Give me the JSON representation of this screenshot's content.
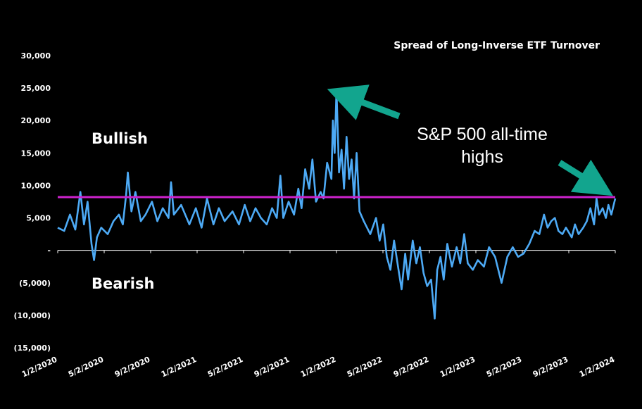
{
  "chart_data": {
    "type": "line",
    "title": "Spread of Long-Inverse ETF Turnover",
    "xlabel": "",
    "ylabel": "",
    "ylim": [
      -15000,
      30000
    ],
    "y_tick_labels": [
      "30,000",
      "25,000",
      "20,000",
      "15,000",
      "10,000",
      "5,000",
      "-",
      "(5,000)",
      "(10,000)",
      "(15,000)"
    ],
    "x_tick_labels": [
      "1/2/2020",
      "5/2/2020",
      "9/2/2020",
      "1/2/2021",
      "5/2/2021",
      "9/2/2021",
      "1/2/2022",
      "5/2/2022",
      "9/2/2022",
      "1/2/2023",
      "5/2/2023",
      "9/2/2023",
      "1/2/2024"
    ],
    "grid": false,
    "series": [
      {
        "color": "#4daaf5",
        "points": [
          [
            "2020-01-02",
            3500
          ],
          [
            "2020-01-20",
            3000
          ],
          [
            "2020-02-05",
            5500
          ],
          [
            "2020-02-20",
            3200
          ],
          [
            "2020-03-05",
            9000
          ],
          [
            "2020-03-15",
            4000
          ],
          [
            "2020-03-25",
            7500
          ],
          [
            "2020-04-05",
            1000
          ],
          [
            "2020-04-12",
            -1500
          ],
          [
            "2020-04-20",
            2000
          ],
          [
            "2020-05-02",
            3500
          ],
          [
            "2020-05-20",
            2500
          ],
          [
            "2020-06-05",
            4500
          ],
          [
            "2020-06-20",
            5500
          ],
          [
            "2020-07-01",
            4000
          ],
          [
            "2020-07-10",
            8500
          ],
          [
            "2020-07-15",
            12000
          ],
          [
            "2020-07-25",
            6000
          ],
          [
            "2020-08-05",
            9000
          ],
          [
            "2020-08-20",
            4500
          ],
          [
            "2020-09-02",
            5500
          ],
          [
            "2020-09-20",
            7500
          ],
          [
            "2020-10-05",
            4500
          ],
          [
            "2020-10-20",
            6500
          ],
          [
            "2020-11-05",
            5000
          ],
          [
            "2020-11-12",
            10500
          ],
          [
            "2020-11-20",
            5500
          ],
          [
            "2020-12-10",
            7000
          ],
          [
            "2021-01-02",
            4000
          ],
          [
            "2021-01-20",
            6500
          ],
          [
            "2021-02-05",
            3500
          ],
          [
            "2021-02-20",
            8000
          ],
          [
            "2021-03-10",
            4000
          ],
          [
            "2021-03-25",
            6500
          ],
          [
            "2021-04-10",
            4500
          ],
          [
            "2021-05-02",
            6000
          ],
          [
            "2021-05-20",
            4000
          ],
          [
            "2021-06-05",
            7000
          ],
          [
            "2021-06-20",
            4500
          ],
          [
            "2021-07-05",
            6500
          ],
          [
            "2021-07-20",
            5000
          ],
          [
            "2021-08-05",
            4000
          ],
          [
            "2021-08-20",
            6500
          ],
          [
            "2021-09-02",
            5000
          ],
          [
            "2021-09-12",
            11500
          ],
          [
            "2021-09-20",
            5000
          ],
          [
            "2021-10-05",
            7500
          ],
          [
            "2021-10-20",
            5500
          ],
          [
            "2021-11-01",
            9500
          ],
          [
            "2021-11-10",
            6500
          ],
          [
            "2021-11-20",
            12500
          ],
          [
            "2021-12-01",
            9500
          ],
          [
            "2021-12-10",
            14000
          ],
          [
            "2021-12-20",
            7500
          ],
          [
            "2022-01-02",
            9000
          ],
          [
            "2022-01-10",
            8000
          ],
          [
            "2022-01-20",
            13500
          ],
          [
            "2022-02-01",
            11000
          ],
          [
            "2022-02-05",
            20000
          ],
          [
            "2022-02-10",
            15000
          ],
          [
            "2022-02-15",
            24800
          ],
          [
            "2022-02-22",
            12000
          ],
          [
            "2022-03-01",
            15500
          ],
          [
            "2022-03-08",
            9500
          ],
          [
            "2022-03-15",
            17500
          ],
          [
            "2022-03-22",
            11000
          ],
          [
            "2022-03-29",
            14000
          ],
          [
            "2022-04-05",
            8000
          ],
          [
            "2022-04-12",
            15000
          ],
          [
            "2022-04-20",
            6000
          ],
          [
            "2022-05-02",
            4500
          ],
          [
            "2022-05-20",
            2500
          ],
          [
            "2022-06-05",
            5000
          ],
          [
            "2022-06-15",
            1500
          ],
          [
            "2022-06-25",
            4000
          ],
          [
            "2022-07-05",
            -1000
          ],
          [
            "2022-07-15",
            -3000
          ],
          [
            "2022-07-25",
            1500
          ],
          [
            "2022-08-05",
            -2500
          ],
          [
            "2022-08-15",
            -6000
          ],
          [
            "2022-08-25",
            -500
          ],
          [
            "2022-09-02",
            -4500
          ],
          [
            "2022-09-15",
            1500
          ],
          [
            "2022-09-25",
            -2000
          ],
          [
            "2022-10-05",
            500
          ],
          [
            "2022-10-15",
            -3500
          ],
          [
            "2022-10-25",
            -5500
          ],
          [
            "2022-11-05",
            -4500
          ],
          [
            "2022-11-15",
            -10500
          ],
          [
            "2022-11-22",
            -3000
          ],
          [
            "2022-12-01",
            -1000
          ],
          [
            "2022-12-10",
            -4500
          ],
          [
            "2022-12-20",
            1000
          ],
          [
            "2023-01-02",
            -2500
          ],
          [
            "2023-01-15",
            500
          ],
          [
            "2023-01-25",
            -2000
          ],
          [
            "2023-02-05",
            2500
          ],
          [
            "2023-02-15",
            -2000
          ],
          [
            "2023-03-01",
            -3000
          ],
          [
            "2023-03-15",
            -1500
          ],
          [
            "2023-04-01",
            -2500
          ],
          [
            "2023-04-15",
            500
          ],
          [
            "2023-05-02",
            -1000
          ],
          [
            "2023-05-20",
            -5000
          ],
          [
            "2023-06-05",
            -1000
          ],
          [
            "2023-06-20",
            500
          ],
          [
            "2023-07-05",
            -1000
          ],
          [
            "2023-07-20",
            -500
          ],
          [
            "2023-08-05",
            1000
          ],
          [
            "2023-08-20",
            3000
          ],
          [
            "2023-09-02",
            2500
          ],
          [
            "2023-09-15",
            5500
          ],
          [
            "2023-09-25",
            3500
          ],
          [
            "2023-10-05",
            4500
          ],
          [
            "2023-10-15",
            5000
          ],
          [
            "2023-10-25",
            3000
          ],
          [
            "2023-11-05",
            2500
          ],
          [
            "2023-11-15",
            3500
          ],
          [
            "2023-12-01",
            2000
          ],
          [
            "2023-12-10",
            4000
          ],
          [
            "2023-12-20",
            2500
          ],
          [
            "2024-01-02",
            3500
          ],
          [
            "2024-01-12",
            4500
          ],
          [
            "2024-01-22",
            6500
          ],
          [
            "2024-02-01",
            4000
          ],
          [
            "2024-02-08",
            8000
          ],
          [
            "2024-02-15",
            5500
          ],
          [
            "2024-02-25",
            6500
          ],
          [
            "2024-03-05",
            5000
          ],
          [
            "2024-03-12",
            7000
          ],
          [
            "2024-03-20",
            5500
          ],
          [
            "2024-03-31",
            8000
          ]
        ]
      }
    ],
    "reference_line": {
      "y": 8200,
      "color": "#cc22cc"
    },
    "annotations": [
      {
        "text": "Bullish"
      },
      {
        "text": "Bearish"
      },
      {
        "lines": [
          "S&P 500 all-time",
          "highs"
        ],
        "arrow_color": "#12a58e"
      }
    ]
  }
}
